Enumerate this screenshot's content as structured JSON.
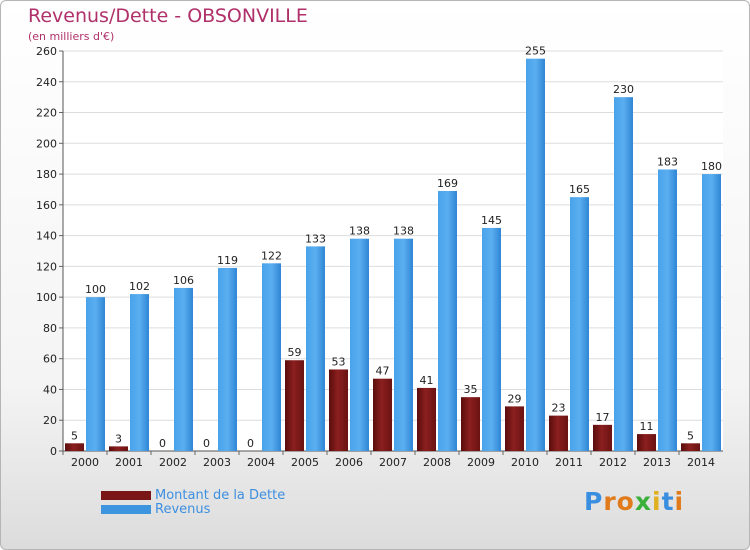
{
  "chart_data": {
    "type": "bar",
    "title": "Revenus/Dette - OBSONVILLE",
    "subtitle": "(en milliers d'€)",
    "categories": [
      "2000",
      "2001",
      "2002",
      "2003",
      "2004",
      "2005",
      "2006",
      "2007",
      "2008",
      "2009",
      "2010",
      "2011",
      "2012",
      "2013",
      "2014"
    ],
    "series": [
      {
        "name": "Montant de la Dette",
        "color": "#7a1616",
        "values": [
          5,
          3,
          0,
          0,
          0,
          59,
          53,
          47,
          41,
          35,
          29,
          23,
          17,
          11,
          5
        ]
      },
      {
        "name": "Revenus",
        "color": "#3d95e0",
        "values": [
          100,
          102,
          106,
          119,
          122,
          133,
          138,
          138,
          169,
          145,
          255,
          165,
          230,
          183,
          180
        ]
      }
    ],
    "ylim": [
      0,
      260
    ],
    "yticks": [
      0,
      20,
      40,
      60,
      80,
      100,
      120,
      140,
      160,
      180,
      200,
      220,
      240,
      260
    ],
    "grid": true,
    "legend_position": "bottom-left"
  },
  "logo": {
    "letters": [
      "P",
      "r",
      "o",
      "x",
      "i",
      "t",
      "i"
    ],
    "colors": [
      "#3a8ee0",
      "#e07a1a",
      "#e07a1a",
      "#3ab03a",
      "#e0b020",
      "#3a8ee0",
      "#e07a1a"
    ]
  }
}
